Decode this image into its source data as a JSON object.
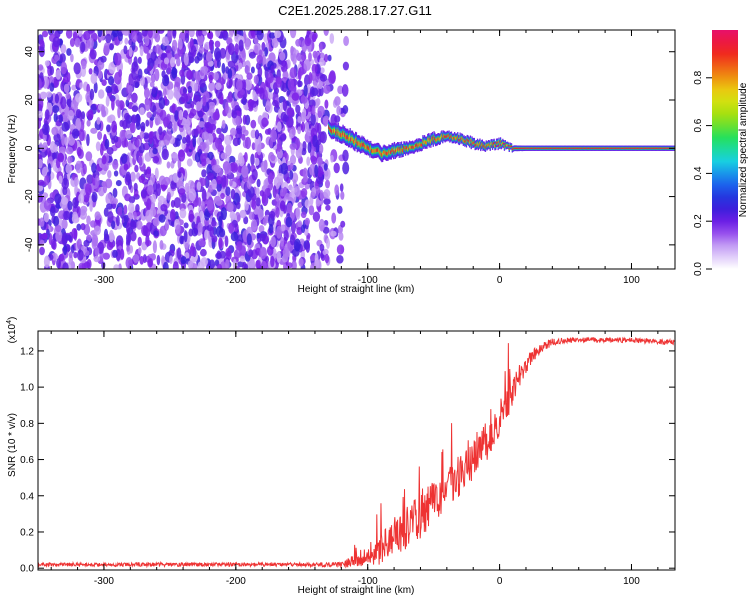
{
  "page_title": "C2E1.2025.288.17.27.G11",
  "colors": {
    "snr_line": "#ee3333",
    "noise_purple": "#6a1fe0",
    "frame": "#000000"
  },
  "chart_data": [
    {
      "type": "heatmap",
      "title": "C2E1.2025.288.17.27.G11",
      "xlabel": "Height of straight line (km)",
      "ylabel": "Frequency (Hz)",
      "xlim": [
        -350,
        133
      ],
      "ylim": [
        -50,
        49
      ],
      "x_ticks": [
        -300,
        -200,
        -100,
        0,
        100
      ],
      "x_tick_labels": [
        "-300",
        "-200",
        "-100",
        "0",
        "100"
      ],
      "y_ticks": [
        -40,
        -20,
        0,
        20,
        40
      ],
      "y_tick_labels": [
        "-40",
        "-20",
        "0",
        "20",
        "40"
      ],
      "noise_region_x": [
        -350,
        -130
      ],
      "signal_track": {
        "x": [
          -130,
          -120,
          -110,
          -100,
          -90,
          -80,
          -70,
          -60,
          -50,
          -40,
          -30,
          -20,
          -10,
          0,
          5,
          10,
          20,
          40,
          60,
          80,
          100,
          120,
          133
        ],
        "frequency": [
          8,
          6,
          3,
          0,
          -2,
          -1,
          0,
          2,
          4,
          5,
          4,
          2,
          1,
          2,
          1,
          0,
          0,
          0,
          0,
          0,
          0,
          0,
          0
        ],
        "spread_hz": [
          3,
          3.5,
          3.5,
          3,
          3,
          3,
          2.5,
          2.5,
          2.5,
          2,
          2,
          2,
          1.8,
          1.8,
          1.5,
          1.2,
          1.1,
          1.1,
          1.1,
          1.1,
          1.1,
          1.1,
          1.1
        ]
      },
      "colorbar": {
        "label": "Normalized spectral amplitude",
        "range": [
          0,
          1
        ],
        "ticks": [
          0.0,
          0.2,
          0.4,
          0.6,
          0.8
        ],
        "tick_labels": [
          "0.0",
          "0.2",
          "0.4",
          "0.6",
          "0.8"
        ],
        "stops": [
          "#ffffff",
          "#c9a6f5",
          "#7b1fe8",
          "#2a1fd8",
          "#1a6cf0",
          "#18d4e0",
          "#20e060",
          "#9be010",
          "#e8e010",
          "#f08010",
          "#f02020",
          "#e8106a"
        ]
      }
    },
    {
      "type": "line",
      "xlabel": "Height of straight line (km)",
      "ylabel": "SNR (10 * v/v)",
      "multiplier_label": "(x10",
      "multiplier_exp": "4",
      "multiplier_close": ")",
      "xlim": [
        -350,
        133
      ],
      "ylim": [
        -0.01,
        1.31
      ],
      "x_ticks": [
        -300,
        -200,
        -100,
        0,
        100
      ],
      "x_tick_labels": [
        "-300",
        "-200",
        "-100",
        "0",
        "100"
      ],
      "y_ticks": [
        0.0,
        0.2,
        0.4,
        0.6,
        0.8,
        1.0,
        1.2
      ],
      "y_tick_labels": [
        "0.0",
        "0.2",
        "0.4",
        "0.6",
        "0.8",
        "1.0",
        "1.2"
      ],
      "series": [
        {
          "x": [
            -350,
            -300,
            -250,
            -200,
            -150,
            -120,
            -110,
            -100,
            -90,
            -80,
            -70,
            -60,
            -50,
            -40,
            -30,
            -20,
            -10,
            0,
            5,
            10,
            15,
            20,
            25,
            30,
            40,
            50,
            60,
            80,
            100,
            120,
            133
          ],
          "y": [
            0.02,
            0.02,
            0.02,
            0.02,
            0.02,
            0.02,
            0.04,
            0.07,
            0.11,
            0.16,
            0.22,
            0.29,
            0.36,
            0.44,
            0.52,
            0.6,
            0.7,
            0.82,
            0.9,
            0.98,
            1.06,
            1.12,
            1.17,
            1.21,
            1.25,
            1.26,
            1.26,
            1.26,
            1.26,
            1.25,
            1.25
          ],
          "noise": [
            0.015,
            0.015,
            0.015,
            0.015,
            0.015,
            0.02,
            0.05,
            0.09,
            0.13,
            0.15,
            0.17,
            0.18,
            0.18,
            0.18,
            0.17,
            0.17,
            0.16,
            0.15,
            0.14,
            0.12,
            0.09,
            0.07,
            0.05,
            0.04,
            0.03,
            0.025,
            0.02,
            0.02,
            0.02,
            0.02,
            0.02
          ]
        }
      ]
    }
  ]
}
